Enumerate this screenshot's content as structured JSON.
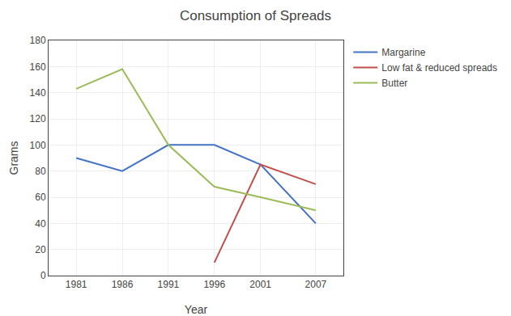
{
  "chart_data": {
    "type": "line",
    "title": "Consumption of Spreads",
    "xlabel": "Year",
    "ylabel": "Grams",
    "x": [
      1981,
      1986,
      1991,
      1996,
      2001,
      2007
    ],
    "series": [
      {
        "name": "Margarine",
        "color": "#4472C4",
        "values": [
          90,
          80,
          100,
          100,
          85,
          40
        ]
      },
      {
        "name": "Low fat & reduced spreads",
        "color": "#C0504D",
        "values": [
          null,
          null,
          null,
          10,
          85,
          70
        ]
      },
      {
        "name": "Butter",
        "color": "#9BBB59",
        "values": [
          143,
          158,
          100,
          68,
          60,
          50
        ]
      }
    ],
    "xlim": [
      1978,
      2010
    ],
    "xticks": [
      1981,
      1986,
      1991,
      1996,
      2001,
      2007
    ],
    "ylim": [
      0,
      180
    ],
    "yticks": [
      0,
      20,
      40,
      60,
      80,
      100,
      120,
      140,
      160,
      180
    ],
    "grid": true,
    "legend": "right"
  }
}
